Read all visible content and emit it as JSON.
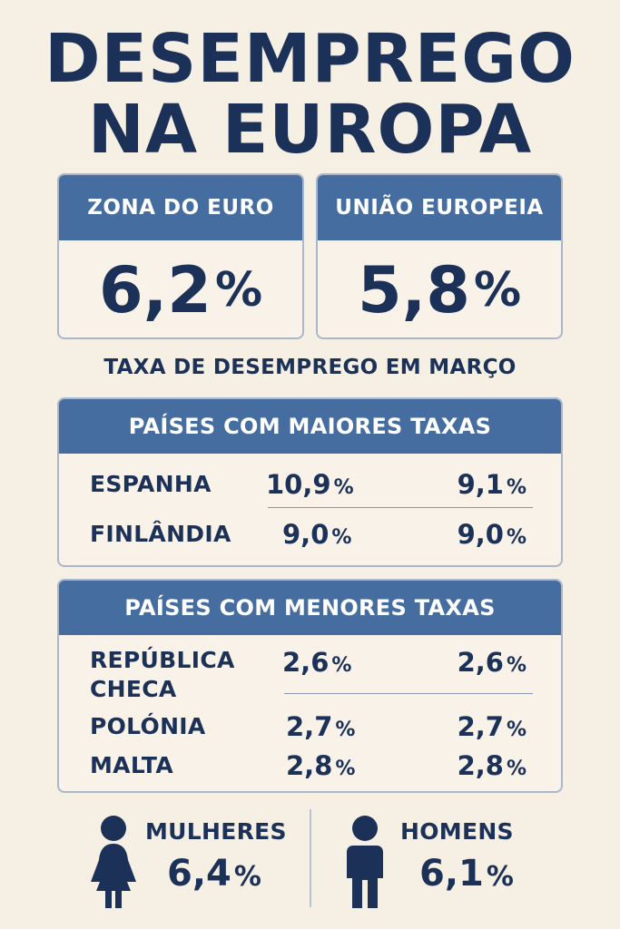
{
  "title": {
    "line1": "DESEMPREGO",
    "line2": "NA EUROPA"
  },
  "kpis": [
    {
      "label": "ZONA DO EURO",
      "value": "6,2",
      "unit": "%"
    },
    {
      "label": "UNIÃO EUROPEIA",
      "value": "5,8",
      "unit": "%"
    }
  ],
  "subtitle": "TAXA DE DESEMPREGO EM MARÇO",
  "highest": {
    "title": "PAÍSES COM MAIORES TAXAS",
    "rows": [
      {
        "name": "ESPANHA",
        "v1": "10,9",
        "v2": "9,1"
      },
      {
        "name": "FINLÂNDIA",
        "v1": "9,0",
        "v2": "9,0"
      }
    ]
  },
  "lowest": {
    "title": "PAÍSES COM MENORES TAXAS",
    "rows": [
      {
        "name_line1": "REPÚBLICA",
        "name_line2": "CHECA",
        "v1": "2,6",
        "v2": "2,6"
      },
      {
        "name": "POLÓNIA",
        "v1": "2,7",
        "v2": "2,7"
      },
      {
        "name": "MALTA",
        "v1": "2,8",
        "v2": "2,8"
      }
    ]
  },
  "unit": "%",
  "gender": {
    "women": {
      "label": "MULHERES",
      "value": "6,4",
      "icon": "woman-icon"
    },
    "men": {
      "label": "HOMENS",
      "value": "6,1",
      "icon": "man-icon"
    }
  },
  "colors": {
    "navy": "#1c3158",
    "blue_header": "#466d9f",
    "background": "#f6efe3"
  }
}
